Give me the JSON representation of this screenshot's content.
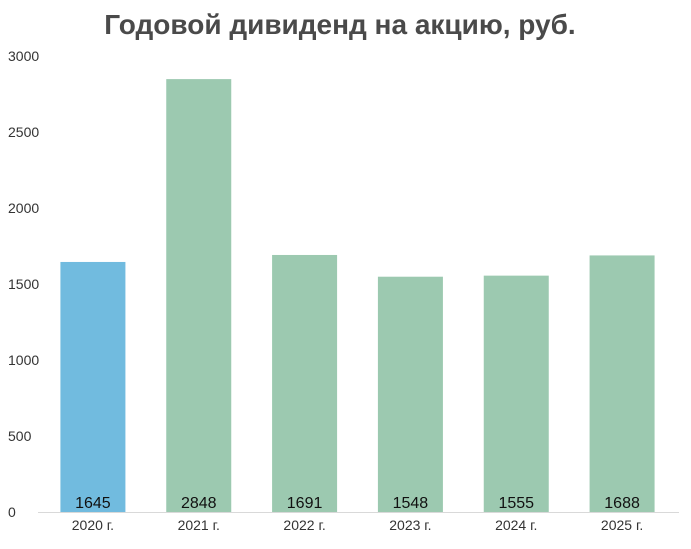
{
  "chart_data": {
    "type": "bar",
    "title": "Годовой дивиденд на акцию, руб.",
    "xlabel": "",
    "ylabel": "",
    "categories": [
      "2020 г.",
      "2021 г.",
      "2022 г.",
      "2023 г.",
      "2024 г.",
      "2025 г."
    ],
    "values": [
      1645,
      2848,
      1691,
      1548,
      1555,
      1688
    ],
    "data_labels": [
      "1645",
      "2848",
      "1691",
      "1548",
      "1555",
      "1688"
    ],
    "bar_colors": [
      "#71bbdf",
      "#9cc9b0",
      "#9cc9b0",
      "#9cc9b0",
      "#9cc9b0",
      "#9cc9b0"
    ],
    "y_ticks": [
      0,
      500,
      1000,
      1500,
      2000,
      2500,
      3000
    ],
    "y_tick_labels": [
      "0",
      "500",
      "1000",
      "1500",
      "2000",
      "2500",
      "3000"
    ],
    "ylim": [
      0,
      3000
    ],
    "grid": false,
    "legend": "none"
  }
}
